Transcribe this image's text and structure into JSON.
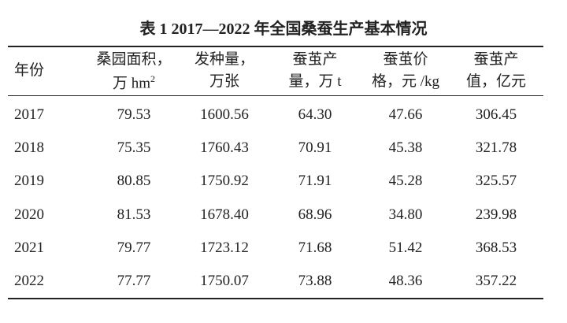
{
  "table": {
    "title": "表 1  2017—2022 年全国桑蚕生产基本情况",
    "header": [
      {
        "lines": [
          "年份"
        ]
      },
      {
        "lines": [
          "桑园面积，",
          "万 hm"
        ],
        "sup": "2"
      },
      {
        "lines": [
          "发种量，",
          "万张"
        ]
      },
      {
        "lines": [
          "蚕茧产",
          "量，万 t"
        ]
      },
      {
        "lines": [
          "蚕茧价",
          "格，元 /kg"
        ]
      },
      {
        "lines": [
          "蚕茧产",
          "值，亿元"
        ]
      }
    ],
    "rows": [
      [
        "2017",
        "79.53",
        "1600.56",
        "64.30",
        "47.66",
        "306.45"
      ],
      [
        "2018",
        "75.35",
        "1760.43",
        "70.91",
        "45.38",
        "321.78"
      ],
      [
        "2019",
        "80.85",
        "1750.92",
        "71.91",
        "45.28",
        "325.57"
      ],
      [
        "2020",
        "81.53",
        "1678.40",
        "68.96",
        "34.80",
        "239.98"
      ],
      [
        "2021",
        "79.77",
        "1723.12",
        "71.68",
        "51.42",
        "368.53"
      ],
      [
        "2022",
        "77.77",
        "1750.07",
        "73.88",
        "48.36",
        "357.22"
      ]
    ]
  }
}
